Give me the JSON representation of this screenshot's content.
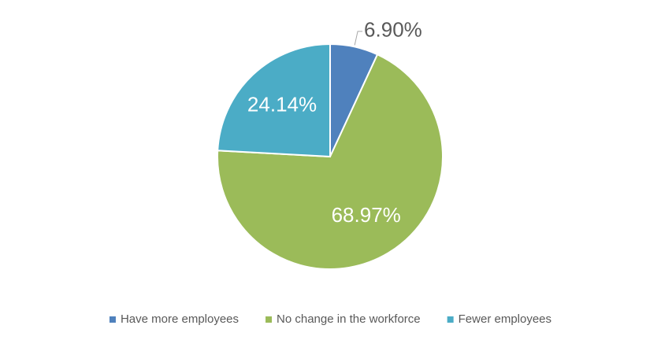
{
  "chart_data": {
    "type": "pie",
    "categories": [
      "Have more employees",
      "No change in the workforce",
      "Fewer employees"
    ],
    "values": [
      6.9,
      68.97,
      24.14
    ],
    "value_labels": [
      "6.90%",
      "68.97%",
      "24.14%"
    ],
    "colors": [
      "#4f81bd",
      "#9bbb59",
      "#4bacc6"
    ],
    "legend": "bottom"
  }
}
